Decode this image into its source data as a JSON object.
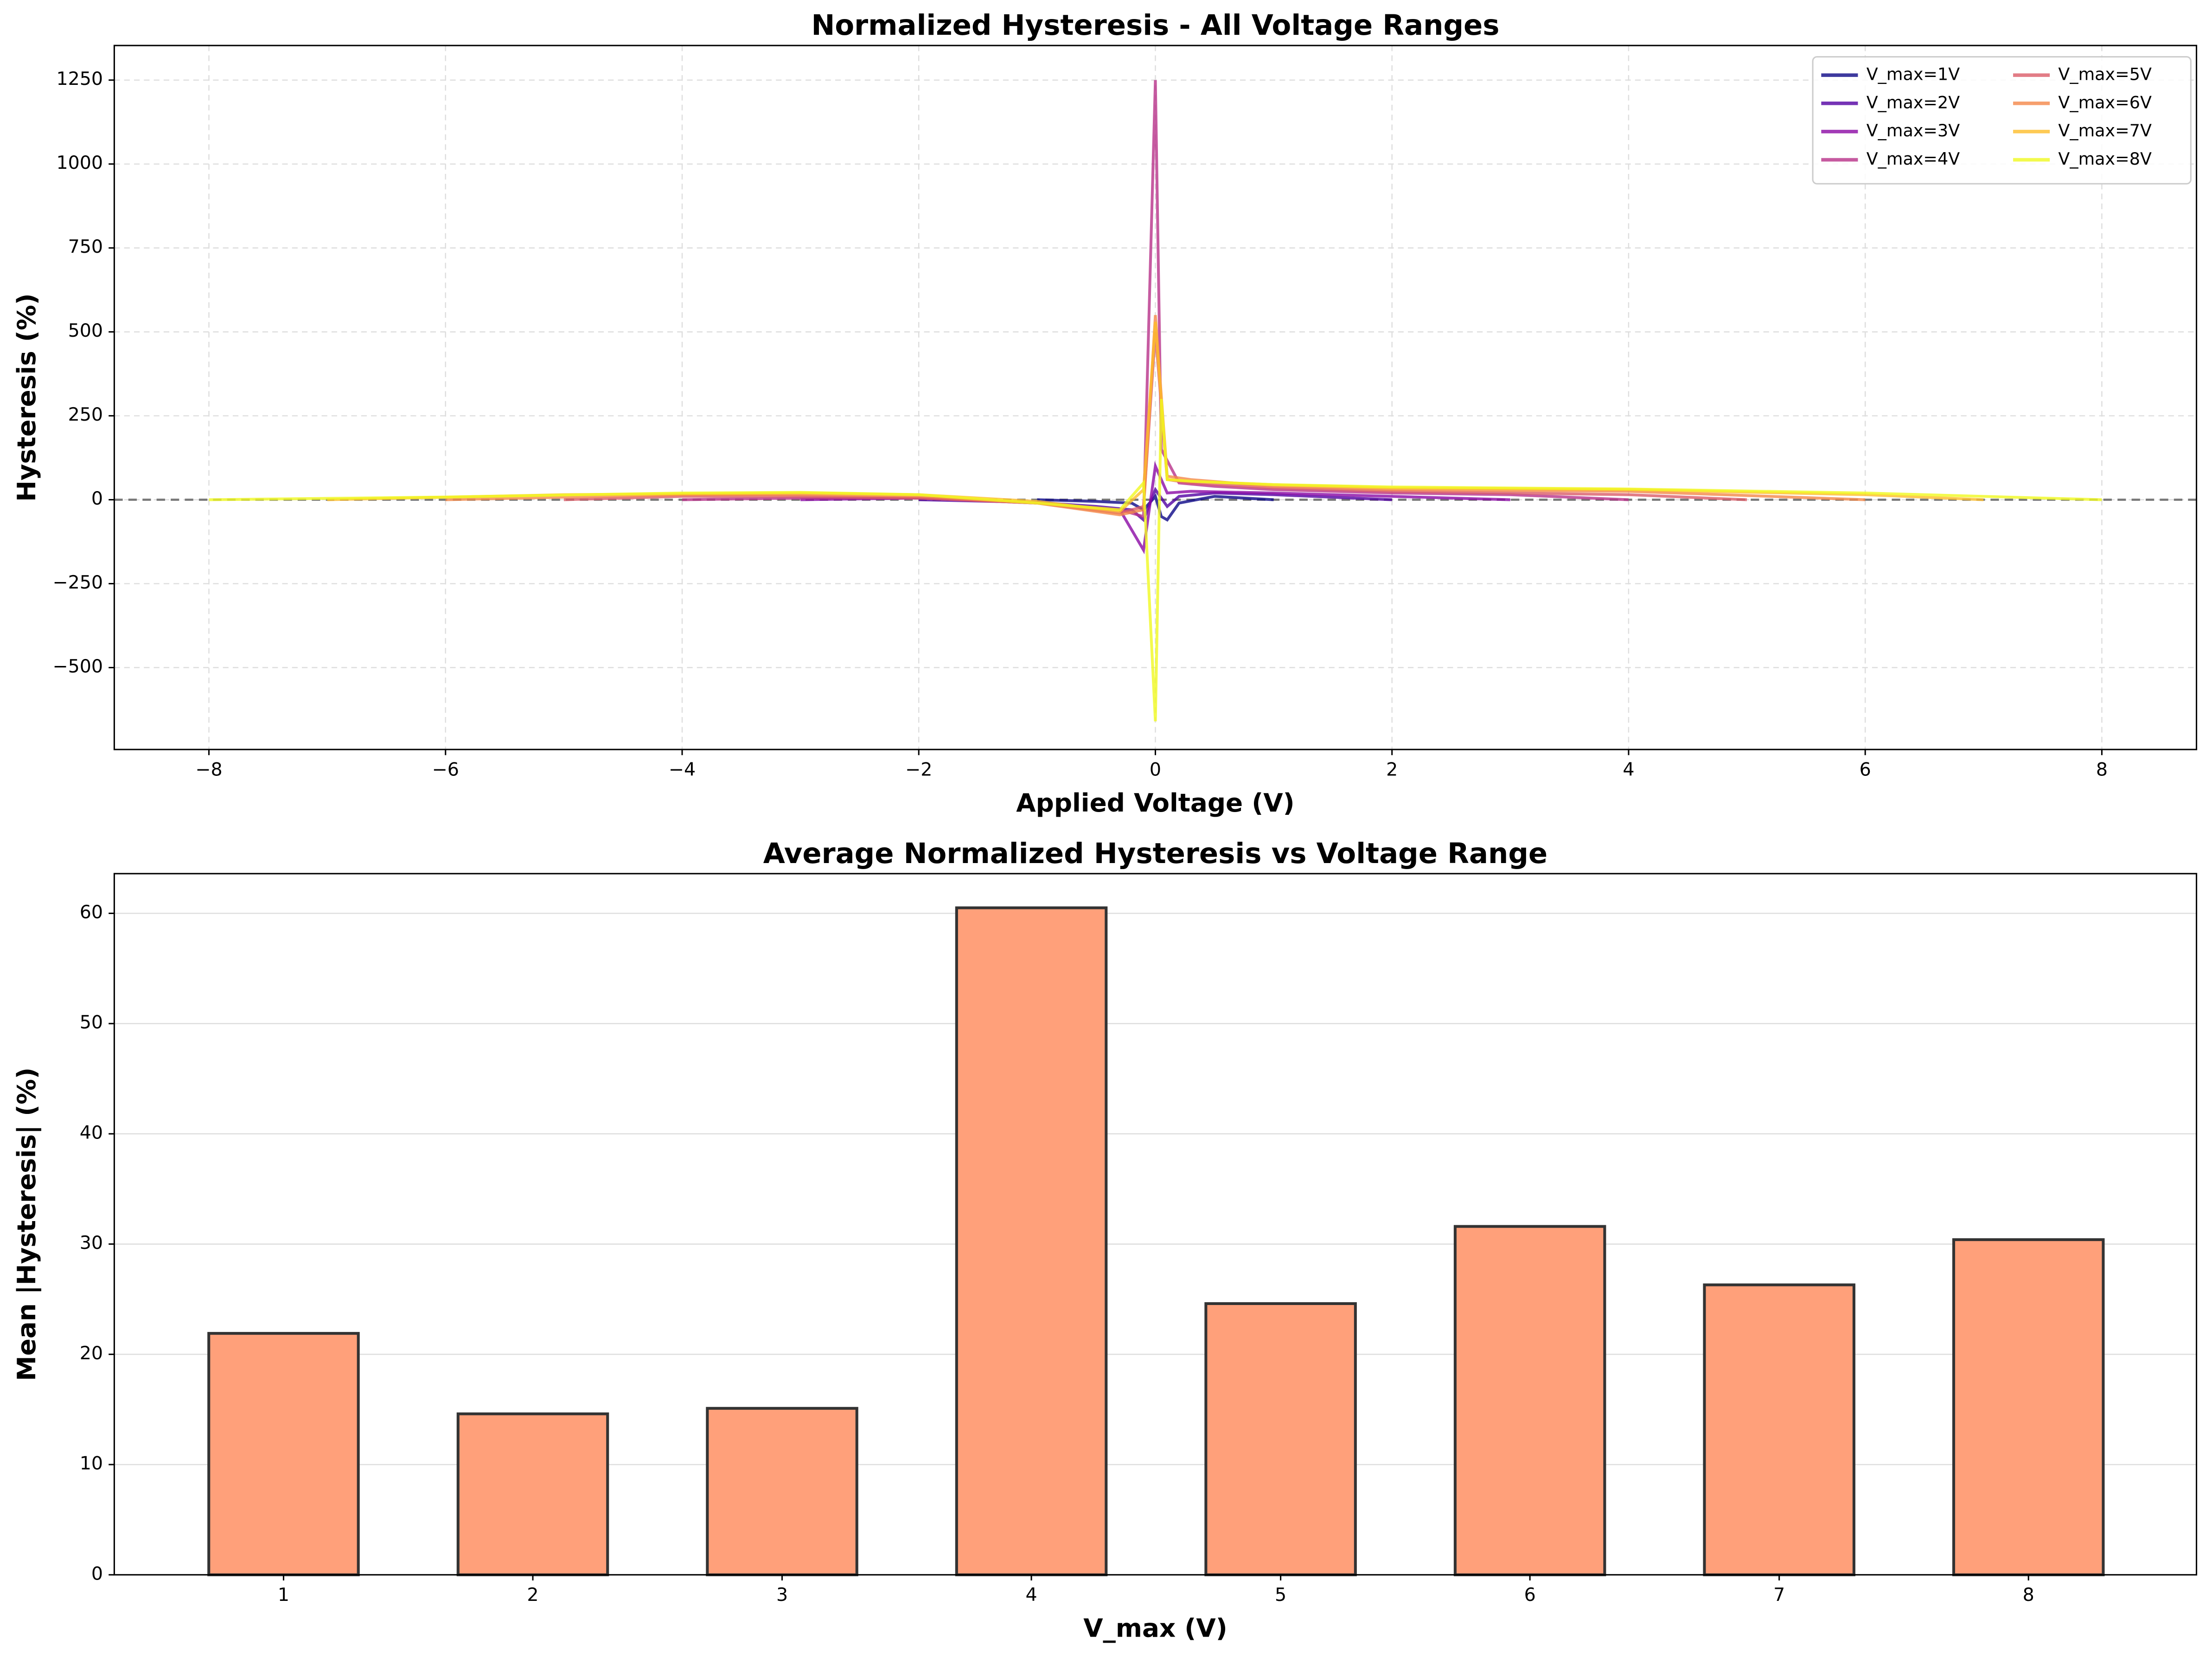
{
  "chart_data": [
    {
      "type": "line",
      "title": "Normalized Hysteresis - All Voltage Ranges",
      "x_label": "Applied Voltage (V)",
      "y_label": "Hysteresis (%)",
      "xlim": [
        -8.8,
        8.8
      ],
      "ylim": [
        -744,
        1353
      ],
      "xticks": [
        {
          "value": -8,
          "label": "−8"
        },
        {
          "value": -6,
          "label": "−6"
        },
        {
          "value": -4,
          "label": "−4"
        },
        {
          "value": -2,
          "label": "−2"
        },
        0,
        2,
        4,
        6,
        8
      ],
      "yticks": [
        {
          "value": -500,
          "label": "−500"
        },
        {
          "value": -250,
          "label": "−250"
        },
        0,
        250,
        500,
        750,
        1000,
        1250
      ],
      "grid": "both",
      "reference_line": 0,
      "legend": "upper right",
      "series": [
        {
          "name": "V_max=1V",
          "color": "#0d0887",
          "x": [
            -1,
            -0.5,
            -0.2,
            -0.1,
            0,
            0.05,
            0.1,
            0.2,
            0.5,
            1
          ],
          "values": [
            0,
            -5,
            -10,
            -30,
            10,
            -50,
            -60,
            -10,
            10,
            0
          ]
        },
        {
          "name": "V_max=2V",
          "color": "#5302a3",
          "x": [
            -2,
            -1,
            -0.5,
            -0.2,
            -0.1,
            0,
            0.1,
            0.2,
            0.5,
            1,
            2
          ],
          "values": [
            0,
            -8,
            -20,
            -30,
            -60,
            30,
            -20,
            10,
            20,
            15,
            0
          ]
        },
        {
          "name": "V_max=3V",
          "color": "#8b0aa5",
          "x": [
            -3,
            -2,
            -1,
            -0.3,
            -0.1,
            0,
            0.1,
            0.3,
            1,
            2,
            3
          ],
          "values": [
            0,
            5,
            -10,
            -30,
            -150,
            100,
            20,
            25,
            20,
            10,
            0
          ]
        },
        {
          "name": "V_max=4V",
          "color": "#b83289",
          "x": [
            -4,
            -3,
            -2,
            -1,
            -0.3,
            -0.1,
            0,
            0.05,
            0.2,
            0.5,
            1,
            2,
            3,
            4
          ],
          "values": [
            0,
            5,
            5,
            -10,
            -30,
            -50,
            1250,
            150,
            50,
            40,
            30,
            20,
            15,
            0
          ]
        },
        {
          "name": "V_max=5V",
          "color": "#db5c68",
          "x": [
            -5,
            -4,
            -3,
            -2,
            -1,
            -0.3,
            -0.1,
            0,
            0.1,
            0.3,
            1,
            2,
            3,
            4,
            5
          ],
          "values": [
            0,
            10,
            10,
            5,
            -10,
            -40,
            -20,
            500,
            60,
            50,
            35,
            25,
            20,
            15,
            0
          ]
        },
        {
          "name": "V_max=6V",
          "color": "#f48849",
          "x": [
            -6,
            -4,
            -3,
            -2,
            -1,
            -0.3,
            -0.1,
            0,
            0.1,
            0.3,
            1,
            2,
            4,
            6
          ],
          "values": [
            0,
            15,
            15,
            10,
            -10,
            -45,
            -30,
            550,
            70,
            60,
            40,
            30,
            25,
            0
          ]
        },
        {
          "name": "V_max=7V",
          "color": "#febd2a",
          "x": [
            -7,
            -5,
            -3,
            -2,
            -1,
            -0.3,
            -0.1,
            0,
            0.1,
            0.3,
            1,
            2,
            4,
            6,
            7
          ],
          "values": [
            0,
            15,
            20,
            15,
            -5,
            -35,
            30,
            530,
            60,
            55,
            45,
            35,
            30,
            15,
            0
          ]
        },
        {
          "name": "V_max=8V",
          "color": "#f0f921",
          "x": [
            -8,
            -6,
            -4,
            -3,
            -2,
            -1,
            -0.3,
            -0.1,
            0,
            0.05,
            0.1,
            0.3,
            1,
            2,
            4,
            6,
            8
          ],
          "values": [
            0,
            8,
            20,
            22,
            15,
            -10,
            -30,
            50,
            -660,
            300,
            60,
            55,
            45,
            38,
            32,
            20,
            0
          ]
        }
      ]
    },
    {
      "type": "bar",
      "title": "Average Normalized Hysteresis vs Voltage Range",
      "x_label": "V_max (V)",
      "y_label": "Mean |Hysteresis| (%)",
      "categories": [
        "1",
        "2",
        "3",
        "4",
        "5",
        "6",
        "7",
        "8"
      ],
      "values": [
        21.9,
        14.6,
        15.1,
        60.5,
        24.6,
        31.6,
        26.3,
        30.4
      ],
      "color": "#ffa07a",
      "edge_color": "#333333",
      "ylim": [
        0,
        63.6
      ],
      "yticks": [
        0,
        10,
        20,
        30,
        40,
        50,
        60
      ],
      "grid": "y"
    }
  ]
}
